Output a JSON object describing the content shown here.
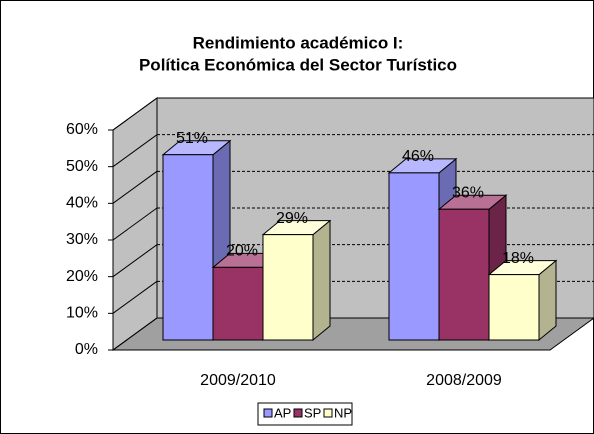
{
  "chart_data": {
    "type": "bar3d",
    "title": [
      "Rendimiento académico I:",
      "Política Económica del Sector Turístico"
    ],
    "categories": [
      "2009/2010",
      "2008/2009"
    ],
    "series": [
      {
        "name": "AP",
        "color": "#9999ff",
        "values": [
          51,
          46
        ],
        "value_labels": [
          "51%",
          "46%"
        ]
      },
      {
        "name": "SP",
        "color": "#993366",
        "values": [
          20,
          36
        ],
        "value_labels": [
          "20%",
          "36%"
        ]
      },
      {
        "name": "NP",
        "color": "#ffffcc",
        "values": [
          29,
          18
        ],
        "value_labels": [
          "29%",
          "18%"
        ]
      }
    ],
    "ylim": [
      0,
      60
    ],
    "yticks": [
      {
        "value": 0,
        "label": "0%"
      },
      {
        "value": 10,
        "label": "10%"
      },
      {
        "value": 20,
        "label": "20%"
      },
      {
        "value": 30,
        "label": "30%"
      },
      {
        "value": 40,
        "label": "40%"
      },
      {
        "value": 50,
        "label": "50%"
      },
      {
        "value": 60,
        "label": "60%"
      }
    ],
    "grid": true,
    "legend": "bottom"
  }
}
